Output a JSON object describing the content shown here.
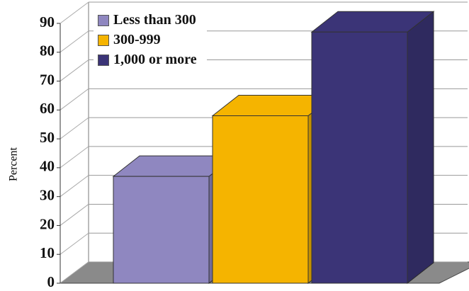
{
  "chart_data": {
    "type": "bar3d",
    "y_label": "Percent",
    "categories": [
      null
    ],
    "series": [
      {
        "name": "Less than 300",
        "color": "#8f87c0",
        "values": [
          37
        ]
      },
      {
        "name": "300-999",
        "color": "#f5b400",
        "values": [
          58
        ]
      },
      {
        "name": "1,000 or more",
        "color": "#3b3477",
        "values": [
          87
        ]
      }
    ],
    "ylim": [
      0,
      90
    ],
    "yticks": [
      0,
      10,
      20,
      30,
      40,
      50,
      60,
      70,
      80,
      90
    ],
    "grid": true,
    "legend": "top-left"
  }
}
